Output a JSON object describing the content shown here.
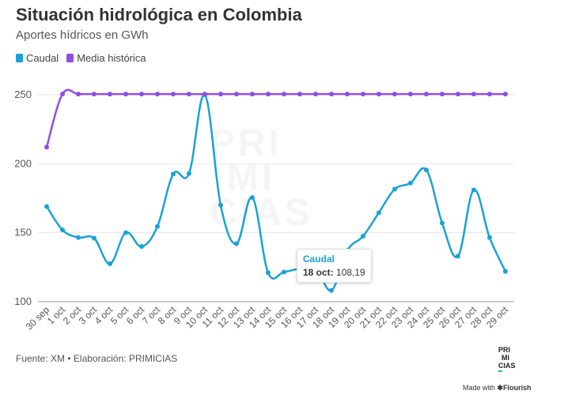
{
  "header": {
    "title": "Situación hidrológica en Colombia",
    "subtitle": "Aportes hídricos en GWh"
  },
  "legend": [
    {
      "label": "Caudal",
      "color": "#1aa2d4"
    },
    {
      "label": "Media histórica",
      "color": "#8e4fe0"
    }
  ],
  "footer": {
    "source": "Fuente: XM • Elaboración: PRIMICIAS",
    "logo": [
      "PRI",
      "MI",
      "CIAS"
    ],
    "made_with": "Made with",
    "made_with_brand": "Flourish"
  },
  "watermark": [
    "PRI",
    "MI",
    "CIAS"
  ],
  "tooltip": {
    "series": "Caudal",
    "label": "18 oct:",
    "value": "108,19"
  },
  "chart_data": {
    "type": "line",
    "categories": [
      "30 sep",
      "1 oct",
      "2 oct",
      "3 oct",
      "4 oct",
      "5 oct",
      "6 oct",
      "7 oct",
      "8 oct",
      "9 oct",
      "10 oct",
      "11 oct",
      "12 oct",
      "13 oct",
      "14 oct",
      "15 oct",
      "16 oct",
      "17 oct",
      "18 oct",
      "19 oct",
      "20 oct",
      "21 oct",
      "22 oct",
      "23 oct",
      "24 oct",
      "25 oct",
      "26 oct",
      "27 oct",
      "28 oct",
      "29 oct"
    ],
    "series": [
      {
        "name": "Caudal",
        "color": "#1aa2d4",
        "values": [
          169,
          152,
          146.5,
          146,
          127.5,
          150,
          140,
          154.5,
          192.5,
          193,
          250,
          170,
          142,
          175.5,
          121,
          121.5,
          124,
          125,
          108.19,
          137,
          147.5,
          164.5,
          181.5,
          186,
          195.5,
          157,
          133,
          181,
          146.5,
          122
        ]
      },
      {
        "name": "Media histórica",
        "color": "#8e4fe0",
        "values": [
          212,
          250.5,
          250.5,
          250.5,
          250.5,
          250.5,
          250.5,
          250.5,
          250.5,
          250.5,
          250.5,
          250.5,
          250.5,
          250.5,
          250.5,
          250.5,
          250.5,
          250.5,
          250.5,
          250.5,
          250.5,
          250.5,
          250.5,
          250.5,
          250.5,
          250.5,
          250.5,
          250.5,
          250.5,
          250.5
        ]
      }
    ],
    "ylim": [
      100,
      250
    ],
    "yticks": [
      100,
      150,
      200,
      250
    ],
    "grid": true,
    "legend_position": "top-left"
  }
}
